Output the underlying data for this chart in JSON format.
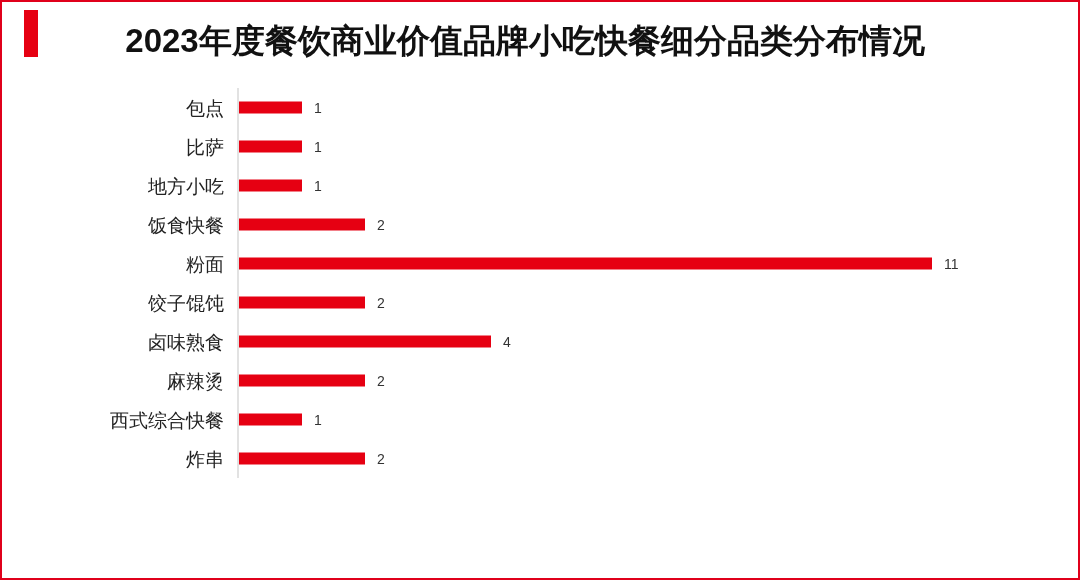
{
  "chart_data": {
    "type": "bar",
    "title": "2023年度餐饮商业价值品牌小吃快餐细分品类分布情况",
    "orientation": "horizontal",
    "categories": [
      "包点",
      "比萨",
      "地方小吃",
      "饭食快餐",
      "粉面",
      "饺子馄饨",
      "卤味熟食",
      "麻辣烫",
      "西式综合快餐",
      "炸串"
    ],
    "values": [
      1,
      1,
      1,
      2,
      11,
      2,
      4,
      2,
      1,
      2
    ],
    "color": "#e60012",
    "data_labels": true
  }
}
